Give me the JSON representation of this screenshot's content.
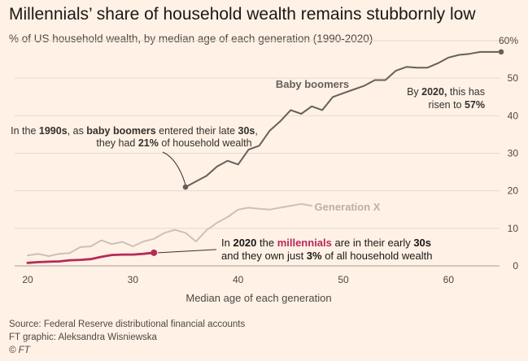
{
  "title": "Millennials’ share of household wealth remains stubbornly low",
  "subtitle": "% of US household wealth, by median age of each generation (1990-2020)",
  "chart_data": {
    "type": "line",
    "title": "Millennials’ share of household wealth remains stubbornly low",
    "subtitle": "% of US household wealth, by median age of each generation (1990-2020)",
    "xlabel": "Median age of each generation",
    "ylabel": "",
    "xlim": [
      20,
      65
    ],
    "ylim": [
      0,
      60
    ],
    "x_ticks": [
      "20",
      "30",
      "40",
      "50",
      "60"
    ],
    "y_ticks": [
      "0",
      "10",
      "20",
      "30",
      "40",
      "50",
      "60%"
    ],
    "grid": true,
    "series": [
      {
        "name": "Baby boomers",
        "label": "Baby boomers",
        "color": "#66605c",
        "x": [
          35,
          36,
          37,
          38,
          39,
          40,
          41,
          42,
          43,
          44,
          45,
          46,
          47,
          48,
          49,
          50,
          51,
          52,
          53,
          54,
          55,
          56,
          57,
          58,
          59,
          60,
          61,
          62,
          63,
          64,
          65
        ],
        "y": [
          21,
          22.5,
          24,
          26.5,
          28,
          27,
          31,
          32,
          36,
          38.5,
          41.5,
          40.5,
          42.5,
          41.5,
          45,
          46,
          47,
          48,
          49.5,
          49.5,
          52,
          53,
          52.8,
          52.8,
          54,
          55.5,
          56.2,
          56.5,
          57,
          57,
          57
        ]
      },
      {
        "name": "Generation X",
        "label": "Generation X",
        "color": "#ccc1b7",
        "x": [
          20,
          21,
          22,
          23,
          24,
          25,
          26,
          27,
          28,
          29,
          30,
          31,
          32,
          33,
          34,
          35,
          36,
          37,
          38,
          39,
          40,
          41,
          42,
          43,
          44,
          45,
          46,
          47
        ],
        "y": [
          2.8,
          3.2,
          2.6,
          3.2,
          3.4,
          5,
          5.2,
          6.8,
          5.8,
          6.4,
          5.2,
          6.5,
          7.2,
          8.8,
          9.6,
          8.8,
          6.5,
          9.5,
          11.5,
          13,
          15,
          15.5,
          15.2,
          15,
          15.5,
          16,
          16.5,
          16
        ]
      },
      {
        "name": "Millennials",
        "label": "",
        "color": "#b7295a",
        "x": [
          20,
          21,
          22,
          23,
          24,
          25,
          26,
          27,
          28,
          29,
          30,
          31,
          32
        ],
        "y": [
          0.8,
          1,
          1.1,
          1.2,
          1.5,
          1.6,
          1.8,
          2.4,
          2.9,
          3,
          3,
          3.2,
          3.5
        ]
      }
    ],
    "annotations": {
      "boomers_1990": {
        "line1": [
          "In the ",
          "1990s",
          ", as ",
          "baby boomers",
          " entered their late ",
          "30s",
          ","
        ],
        "line2": [
          "they had ",
          "21%",
          " of household wealth"
        ]
      },
      "boomers_2020": {
        "line1": [
          "By ",
          "2020,",
          " this has"
        ],
        "line2": [
          "risen to ",
          "57%"
        ]
      },
      "millennials_2020": {
        "line1": [
          "In ",
          "2020",
          " the ",
          "millennials",
          " are in their early ",
          "30s"
        ],
        "line2": [
          "and they own just ",
          "3%",
          " of all household wealth"
        ]
      }
    }
  },
  "footer": {
    "source": "Source: Federal Reserve distributional financial accounts",
    "credit": "FT graphic: Aleksandra Wisniewska",
    "copyright": "© FT"
  },
  "colors": {
    "background": "#fff1e5",
    "boomers": "#66605c",
    "genx": "#ccc1b7",
    "millennials": "#b7295a",
    "grid": "#e5d9ce"
  }
}
